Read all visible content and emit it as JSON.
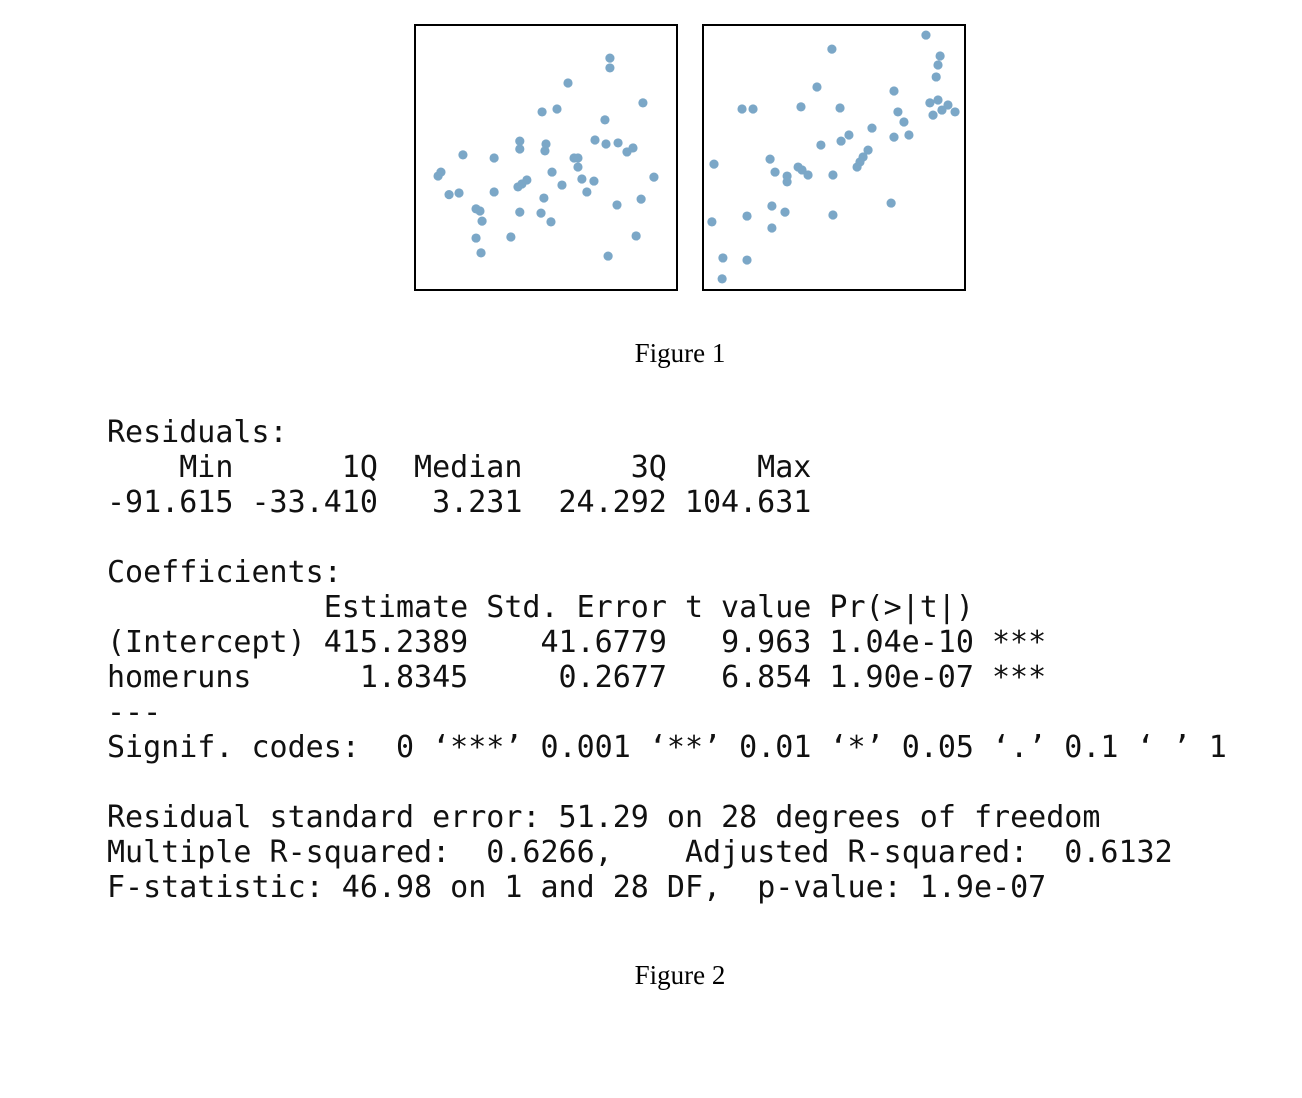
{
  "chart_data": [
    {
      "type": "scatter",
      "color": "#7ba7c7",
      "xlim": [
        0,
        100
      ],
      "ylim": [
        0,
        100
      ],
      "x": [
        8.8,
        9.9,
        13,
        16.8,
        18.3,
        23.3,
        24.8,
        25.6,
        23.3,
        25.2,
        30.2,
        30.2,
        36.6,
        39.3,
        40,
        40,
        40.8,
        42.7,
        40,
        48.1,
        49.2,
        51.9,
        49.6,
        50,
        48.5,
        54.2,
        58.4,
        52.3,
        56.1,
        60.7,
        62.2,
        62.2,
        63.7,
        65.6,
        68.3,
        68.7,
        72.9,
        72.5,
        74.4,
        74.4,
        77.5,
        80.9,
        83.2,
        87,
        91.2,
        86.3,
        77.1,
        84.4,
        73.7
      ],
      "values": [
        43,
        44.5,
        36,
        36.6,
        51,
        30.6,
        29.8,
        26,
        19.6,
        14,
        49.8,
        37,
        20,
        38.9,
        53.2,
        56.2,
        40,
        41.5,
        29.4,
        29,
        34.7,
        25.7,
        52.5,
        55.1,
        67.2,
        68.3,
        78.1,
        44.5,
        39.6,
        49.8,
        49.8,
        46.4,
        41.9,
        37,
        41.1,
        56.6,
        55.1,
        64.2,
        87.5,
        83.8,
        55.5,
        52.1,
        53.6,
        70.6,
        42.6,
        34.3,
        32.1,
        20.4,
        12.8
      ]
    },
    {
      "type": "scatter",
      "color": "#7ba7c7",
      "xlim": [
        0,
        100
      ],
      "ylim": [
        0,
        100
      ],
      "x": [
        85.1,
        90.5,
        89.7,
        89,
        49.2,
        43.5,
        72.9,
        14.9,
        19.1,
        37.4,
        52.3,
        74.4,
        76.7,
        86.6,
        89.7,
        93.5,
        96.2,
        87.8,
        91.2,
        64.5,
        72.9,
        78.6,
        55.7,
        52.7,
        45,
        63,
        61.1,
        59.9,
        58.8,
        4.2,
        25.6,
        27.5,
        32.1,
        32.1,
        36.3,
        37.8,
        40.1,
        49.6,
        16.8,
        26.3,
        31.3,
        26.3,
        49.6,
        71.8,
        3.4,
        7.6,
        16.8,
        7.3
      ],
      "values": [
        96.2,
        88.3,
        84.9,
        80.4,
        90.9,
        76.6,
        75.1,
        68.3,
        68.3,
        69.1,
        68.7,
        67.2,
        63.4,
        70.6,
        71.7,
        69.8,
        67.2,
        66,
        67.9,
        61.1,
        57.7,
        58.5,
        58.5,
        56.2,
        54.7,
        52.8,
        50.2,
        48.3,
        46.4,
        47.5,
        49.4,
        44.5,
        43,
        40.8,
        46.4,
        45.3,
        43.4,
        43.4,
        27.9,
        31.7,
        29.4,
        23.4,
        28.3,
        32.8,
        25.7,
        12.1,
        11.3,
        4.2
      ]
    }
  ],
  "figure1_caption": "Figure 1",
  "regression_output": {
    "residuals": {
      "title": "Residuals:",
      "headers": [
        "Min",
        "1Q",
        "Median",
        "3Q",
        "Max"
      ],
      "values": [
        "-91.615",
        "-33.410",
        "3.231",
        "24.292",
        "104.631"
      ]
    },
    "coefficients": {
      "title": "Coefficients:",
      "headers": [
        "Estimate",
        "Std. Error",
        "t value",
        "Pr(>|t|)"
      ],
      "rows": [
        {
          "name": "(Intercept)",
          "cells": [
            "415.2389",
            "41.6779",
            "9.963",
            "1.04e-10"
          ],
          "signif": "***"
        },
        {
          "name": "homeruns",
          "cells": [
            "1.8345",
            "0.2677",
            "6.854",
            "1.90e-07"
          ],
          "signif": "***"
        }
      ]
    },
    "separator": "---",
    "signif_codes": "Signif. codes:  0 ‘***’ 0.001 ‘**’ 0.01 ‘*’ 0.05 ‘.’ 0.1 ‘ ’ 1",
    "summary": [
      "Residual standard error: 51.29 on 28 degrees of freedom",
      "Multiple R-squared:  0.6266,\tAdjusted R-squared:  0.6132",
      "F-statistic: 46.98 on 1 and 28 DF,  p-value: 1.9e-07"
    ]
  },
  "figure2_caption": "Figure 2"
}
